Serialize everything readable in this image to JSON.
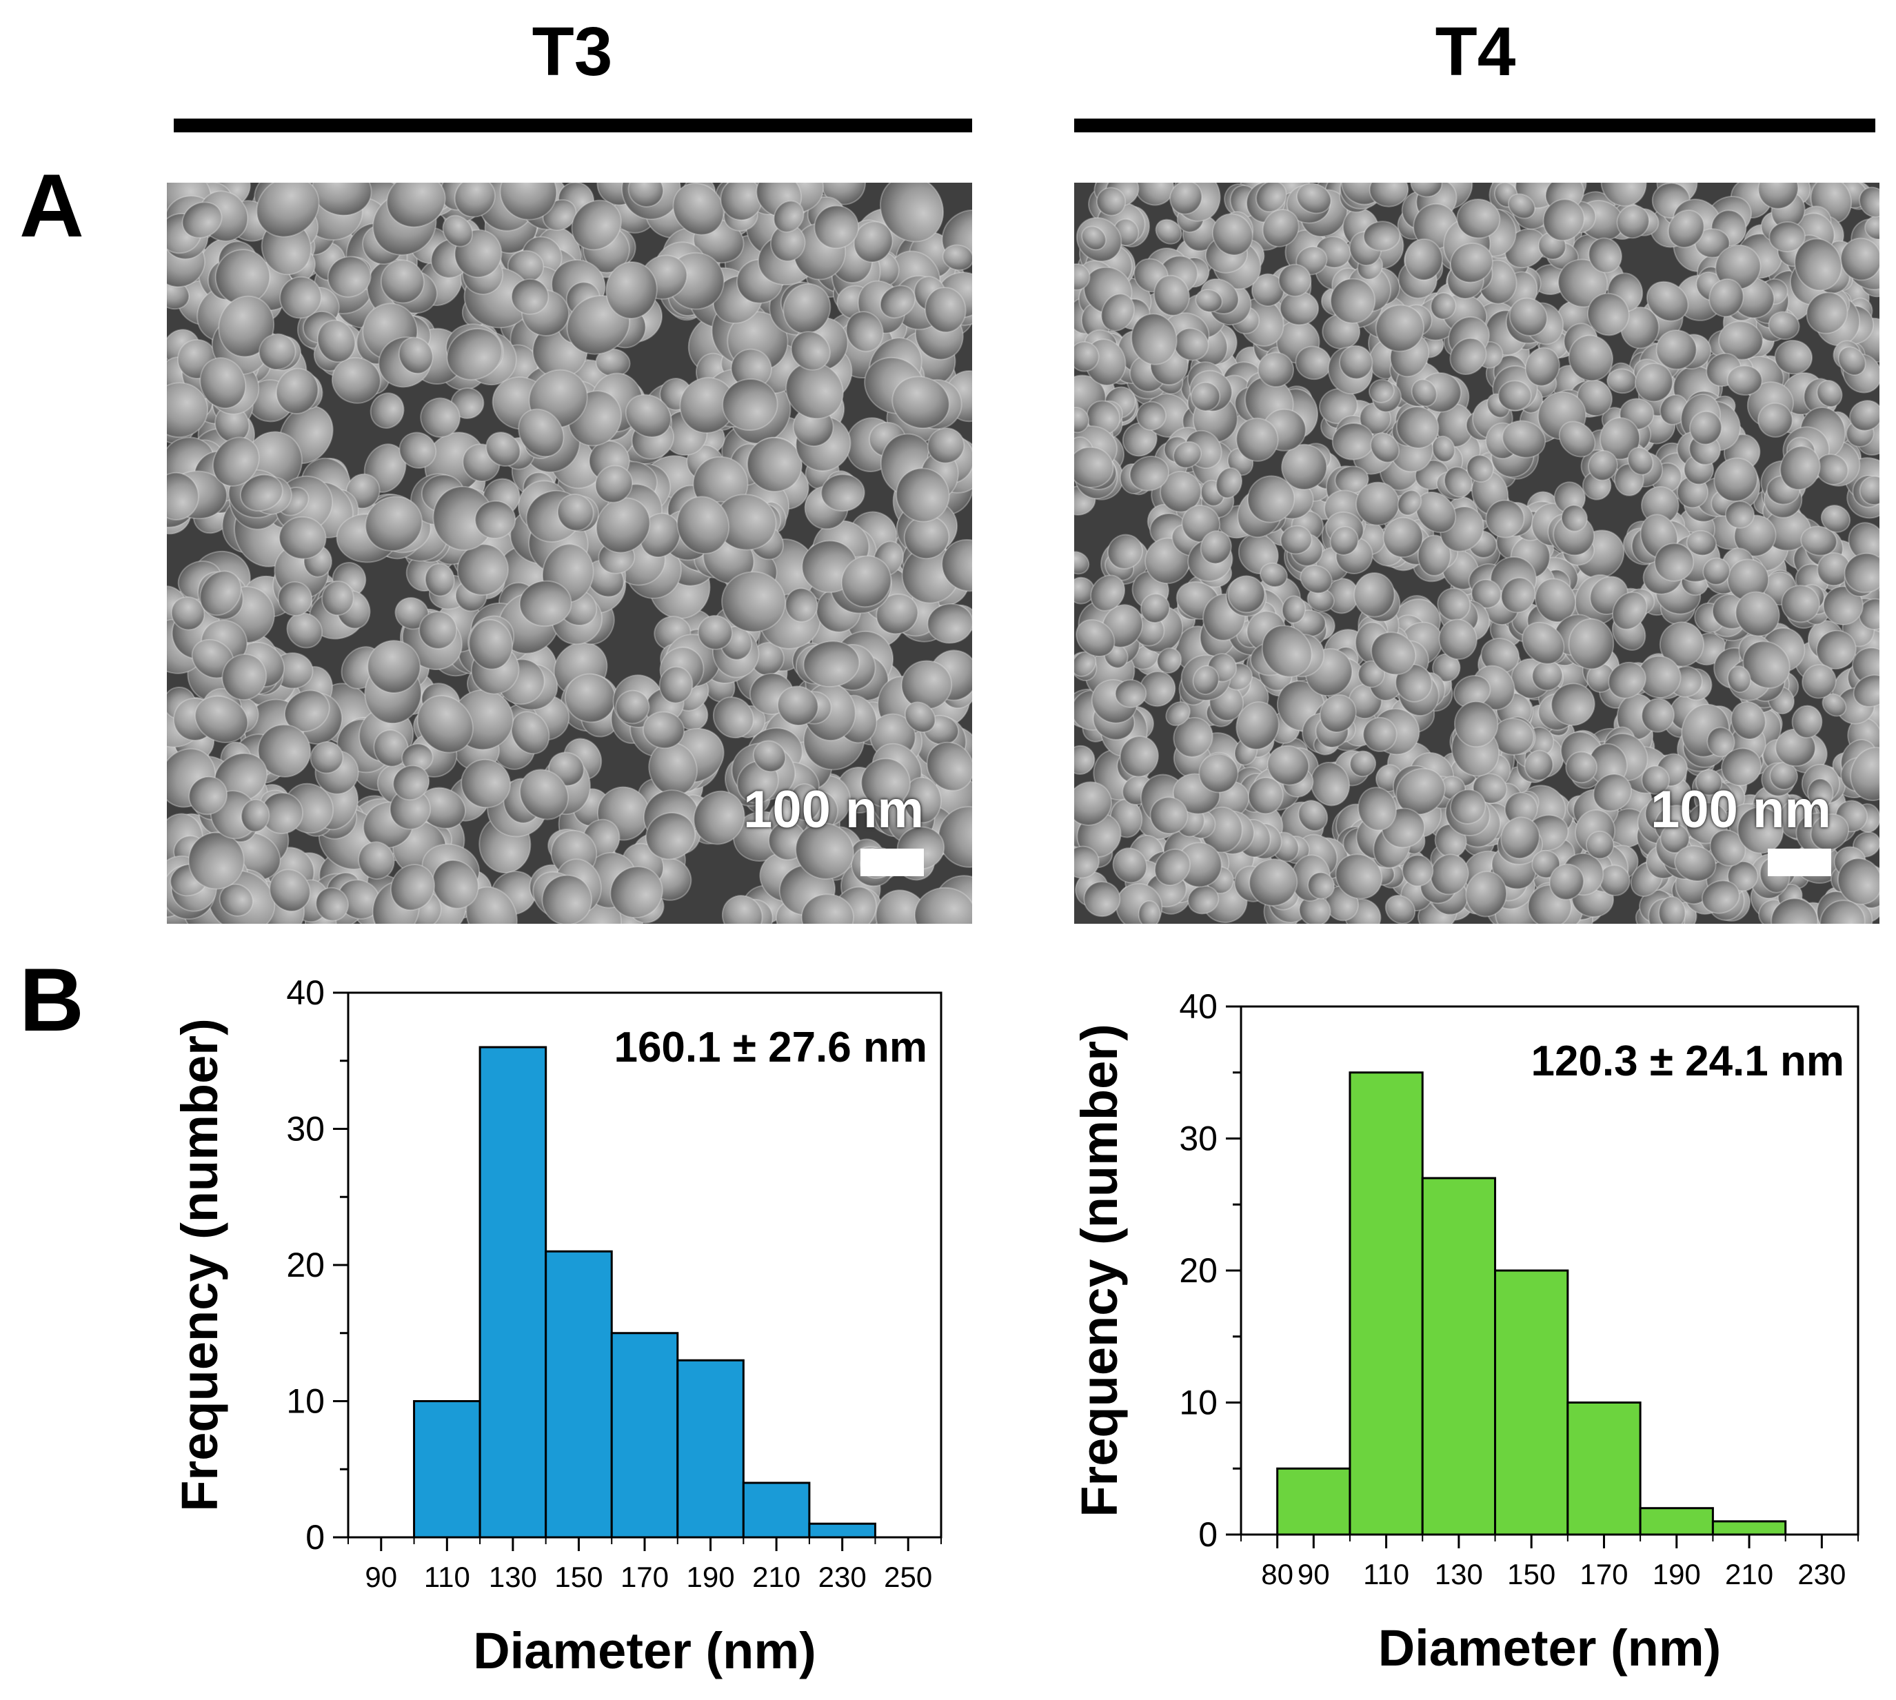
{
  "figure": {
    "columns": [
      {
        "label": "T3"
      },
      {
        "label": "T4"
      }
    ],
    "panels": {
      "a": "A",
      "b": "B"
    },
    "micrographs": [
      {
        "sample": "T3",
        "scale_text": "100 nm",
        "description": "SEM micrograph of particles (T3)"
      },
      {
        "sample": "T4",
        "scale_text": "100 nm",
        "description": "SEM micrograph of particles (T4)"
      }
    ]
  },
  "chart_data": [
    {
      "type": "bar",
      "title": "T3",
      "annotation": "160.1 ± 27.6 nm",
      "xlabel": "Diameter (nm)",
      "ylabel": "Frequency (number)",
      "bin_edges": [
        100,
        120,
        140,
        160,
        180,
        200,
        220,
        240
      ],
      "values": [
        10,
        36,
        21,
        15,
        13,
        4,
        1
      ],
      "xlim": [
        80,
        260
      ],
      "xticks": [
        90,
        110,
        130,
        150,
        170,
        190,
        210,
        230,
        250
      ],
      "ylim": [
        0,
        40
      ],
      "yticks": [
        0,
        10,
        20,
        30,
        40
      ],
      "color": "#1a9bd7"
    },
    {
      "type": "bar",
      "title": "T4",
      "annotation": "120.3 ± 24.1 nm",
      "xlabel": "Diameter (nm)",
      "ylabel": "Frequency (number)",
      "bin_edges": [
        80,
        100,
        120,
        140,
        160,
        180,
        200,
        220
      ],
      "values": [
        5,
        35,
        27,
        20,
        10,
        2,
        1
      ],
      "xlim": [
        70,
        240
      ],
      "xticks": [
        80,
        90,
        110,
        130,
        150,
        170,
        190,
        210,
        230
      ],
      "ylim": [
        0,
        40
      ],
      "yticks": [
        0,
        10,
        20,
        30,
        40
      ],
      "color": "#6cd43e"
    }
  ]
}
